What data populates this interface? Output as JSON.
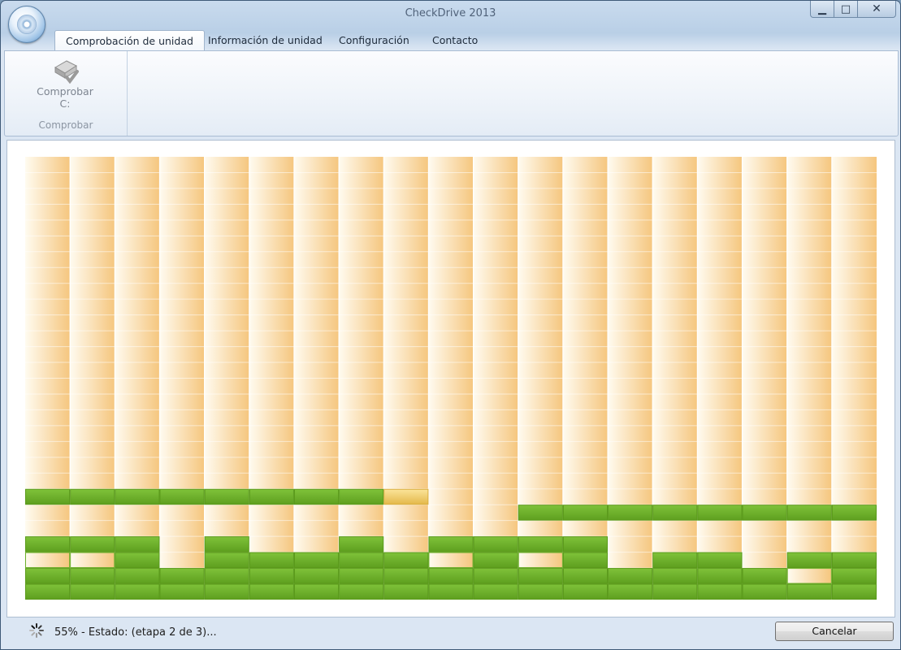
{
  "window": {
    "title": "CheckDrive 2013"
  },
  "caption_buttons": {
    "minimize": "▁",
    "maximize": "□",
    "close": "✕"
  },
  "tabs": [
    {
      "label": "Comprobación de unidad",
      "active": true
    },
    {
      "label": "Información de unidad",
      "active": false
    },
    {
      "label": "Configuración",
      "active": false
    },
    {
      "label": "Contacto",
      "active": false
    }
  ],
  "ribbon": {
    "check_button_label": "Comprobar C:",
    "check_button_icon": "drive-check-icon",
    "group_label": "Comprobar"
  },
  "block_map": {
    "columns": 19,
    "rows": 28,
    "colors": {
      "pending_light": "#fffbf0",
      "pending_dark": "#f5c67e",
      "ok": "#6cae28",
      "current": "#f1cc5c",
      "grid": "#ffffff"
    },
    "cells": {
      "ok": [
        [
          21,
          0
        ],
        [
          21,
          1
        ],
        [
          21,
          2
        ],
        [
          21,
          3
        ],
        [
          21,
          4
        ],
        [
          21,
          5
        ],
        [
          21,
          6
        ],
        [
          21,
          7
        ],
        [
          22,
          11
        ],
        [
          22,
          12
        ],
        [
          22,
          13
        ],
        [
          22,
          14
        ],
        [
          22,
          15
        ],
        [
          22,
          16
        ],
        [
          22,
          17
        ],
        [
          22,
          18
        ],
        [
          24,
          0
        ],
        [
          24,
          1
        ],
        [
          24,
          2
        ],
        [
          24,
          4
        ],
        [
          24,
          7
        ],
        [
          24,
          9
        ],
        [
          24,
          10
        ],
        [
          24,
          11
        ],
        [
          24,
          12
        ],
        [
          25,
          2
        ],
        [
          25,
          4
        ],
        [
          25,
          5
        ],
        [
          25,
          6
        ],
        [
          25,
          7
        ],
        [
          25,
          8
        ],
        [
          25,
          10
        ],
        [
          25,
          12
        ],
        [
          25,
          14
        ],
        [
          25,
          15
        ],
        [
          25,
          17
        ],
        [
          25,
          18
        ],
        [
          26,
          0
        ],
        [
          26,
          1
        ],
        [
          26,
          2
        ],
        [
          26,
          3
        ],
        [
          26,
          4
        ],
        [
          26,
          5
        ],
        [
          26,
          6
        ],
        [
          26,
          7
        ],
        [
          26,
          8
        ],
        [
          26,
          9
        ],
        [
          26,
          10
        ],
        [
          26,
          11
        ],
        [
          26,
          12
        ],
        [
          26,
          13
        ],
        [
          26,
          14
        ],
        [
          26,
          15
        ],
        [
          26,
          16
        ],
        [
          26,
          18
        ],
        [
          27,
          0
        ],
        [
          27,
          1
        ],
        [
          27,
          2
        ],
        [
          27,
          3
        ],
        [
          27,
          4
        ],
        [
          27,
          5
        ],
        [
          27,
          6
        ],
        [
          27,
          7
        ],
        [
          27,
          8
        ],
        [
          27,
          9
        ],
        [
          27,
          10
        ],
        [
          27,
          11
        ],
        [
          27,
          12
        ],
        [
          27,
          13
        ],
        [
          27,
          14
        ],
        [
          27,
          15
        ],
        [
          27,
          16
        ],
        [
          27,
          17
        ],
        [
          27,
          18
        ]
      ],
      "current": [
        [
          21,
          8
        ]
      ],
      "pending_outlined": [
        [
          25,
          0
        ],
        [
          25,
          1
        ],
        [
          25,
          9
        ],
        [
          25,
          11
        ],
        [
          26,
          17
        ]
      ]
    }
  },
  "status": {
    "spinner_icon": "loading-spinner-icon",
    "text": "55% - Estado: (etapa 2 de 3)..."
  },
  "cancel_button_label": "Cancelar"
}
